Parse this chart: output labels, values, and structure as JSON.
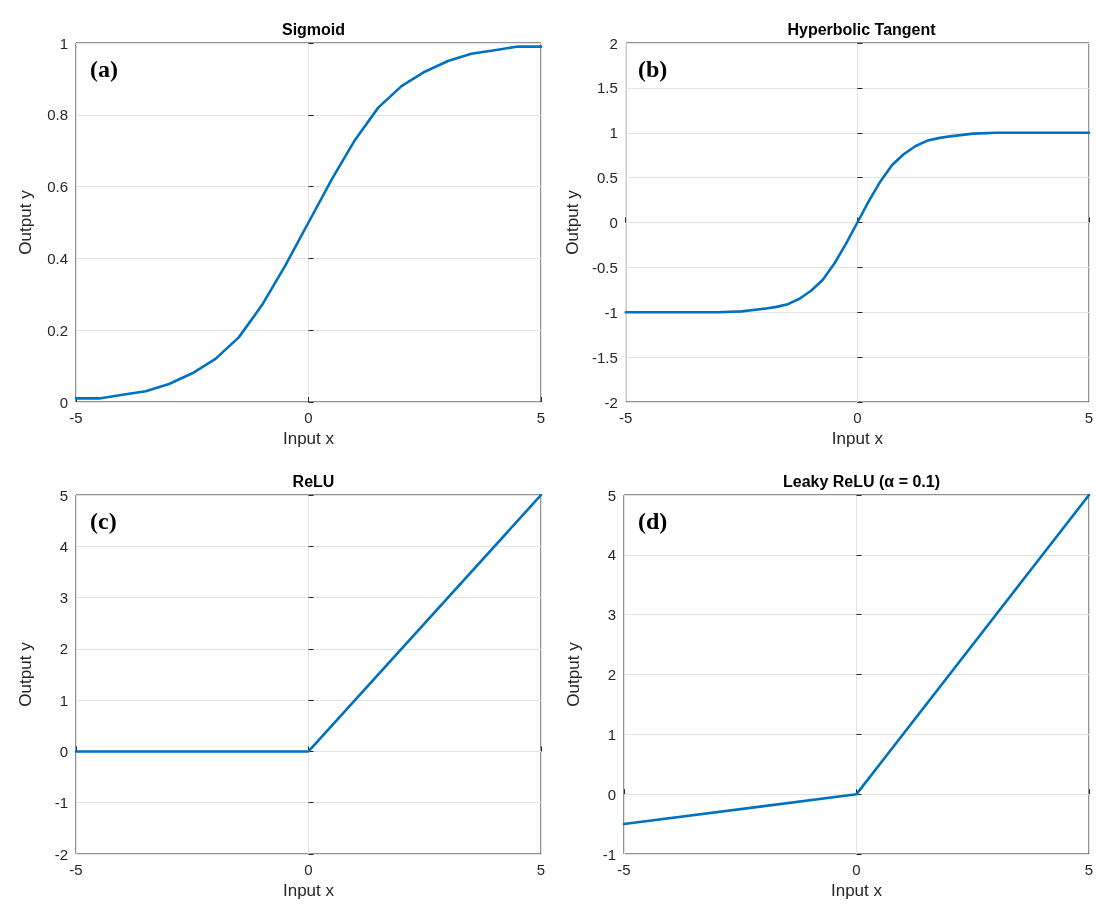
{
  "chart_data": [
    {
      "type": "line",
      "title": "Sigmoid",
      "xlabel": "Input x",
      "ylabel": "Output y",
      "annotations": [
        "(a)"
      ],
      "xlim": [
        -5,
        5
      ],
      "xticks": [
        -5,
        0,
        5
      ],
      "ylim": [
        0,
        1
      ],
      "yticks": [
        0,
        0.2,
        0.4,
        0.6,
        0.8,
        1
      ],
      "grid": true,
      "series": [
        {
          "color": "#0072bd",
          "x": [
            -5,
            -4.5,
            -4,
            -3.5,
            -3,
            -2.5,
            -2,
            -1.5,
            -1,
            -0.5,
            0,
            0.5,
            1,
            1.5,
            2,
            2.5,
            3,
            3.5,
            4,
            4.5,
            5
          ],
          "values": [
            0.01,
            0.01,
            0.02,
            0.03,
            0.05,
            0.08,
            0.12,
            0.18,
            0.27,
            0.38,
            0.5,
            0.62,
            0.73,
            0.82,
            0.88,
            0.92,
            0.95,
            0.97,
            0.98,
            0.99,
            0.99
          ]
        }
      ]
    },
    {
      "type": "line",
      "title": "Hyperbolic Tangent",
      "xlabel": "Input x",
      "ylabel": "Output y",
      "annotations": [
        "(b)"
      ],
      "xlim": [
        -5,
        5
      ],
      "xticks": [
        -5,
        0,
        5
      ],
      "ylim": [
        -2,
        2
      ],
      "yticks": [
        -2,
        -1.5,
        -1,
        -0.5,
        0,
        0.5,
        1,
        1.5,
        2
      ],
      "grid": true,
      "series": [
        {
          "color": "#0072bd",
          "x": [
            -5,
            -4,
            -3,
            -2.5,
            -2,
            -1.75,
            -1.5,
            -1.25,
            -1,
            -0.75,
            -0.5,
            -0.25,
            0,
            0.25,
            0.5,
            0.75,
            1,
            1.25,
            1.5,
            1.75,
            2,
            2.5,
            3,
            4,
            5
          ],
          "values": [
            -1,
            -1,
            -1,
            -0.99,
            -0.96,
            -0.94,
            -0.91,
            -0.85,
            -0.76,
            -0.64,
            -0.46,
            -0.24,
            0,
            0.24,
            0.46,
            0.64,
            0.76,
            0.85,
            0.91,
            0.94,
            0.96,
            0.99,
            1,
            1,
            1
          ]
        }
      ]
    },
    {
      "type": "line",
      "title": "ReLU",
      "xlabel": "Input x",
      "ylabel": "Output y",
      "annotations": [
        "(c)"
      ],
      "xlim": [
        -5,
        5
      ],
      "xticks": [
        -5,
        0,
        5
      ],
      "ylim": [
        -2,
        5
      ],
      "yticks": [
        -2,
        -1,
        0,
        1,
        2,
        3,
        4,
        5
      ],
      "grid": true,
      "series": [
        {
          "color": "#0072bd",
          "x": [
            -5,
            0,
            5
          ],
          "values": [
            0,
            0,
            5
          ]
        }
      ]
    },
    {
      "type": "line",
      "title": "Leaky ReLU (α = 0.1)",
      "xlabel": "Input x",
      "ylabel": "Output y",
      "annotations": [
        "(d)"
      ],
      "xlim": [
        -5,
        5
      ],
      "xticks": [
        -5,
        0,
        5
      ],
      "ylim": [
        -1,
        5
      ],
      "yticks": [
        -1,
        0,
        1,
        2,
        3,
        4,
        5
      ],
      "grid": true,
      "series": [
        {
          "color": "#0072bd",
          "x": [
            -5,
            0,
            5
          ],
          "values": [
            -0.5,
            0,
            5
          ]
        }
      ]
    }
  ]
}
